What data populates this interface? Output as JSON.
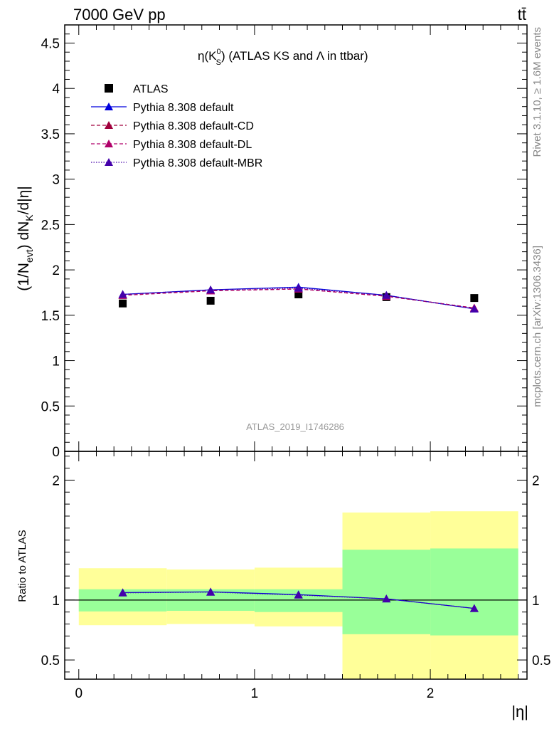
{
  "header": {
    "energy_label": "7000 GeV pp",
    "process_label": "tt̄"
  },
  "side_labels": {
    "rivet": "Rivet 3.1.10, ≥ 1.6M events",
    "mcplots": "mcplots.cern.ch [arXiv:1306.3436]"
  },
  "chart_data": [
    {
      "type": "line",
      "title": "η(K⁰S) (ATLAS KS and Λ in ttbar)",
      "ylabel": "(1/N_evt) dN_K/d|η|",
      "xlabel": "",
      "analysis_label": "ATLAS_2019_I1746286",
      "xlim": [
        -0.08,
        2.55
      ],
      "ylim": [
        0,
        4.7
      ],
      "yticks": [
        0,
        0.5,
        1,
        1.5,
        2,
        2.5,
        3,
        3.5,
        4,
        4.5
      ],
      "ytick_labels": [
        "0",
        "0.5",
        "1",
        "1.5",
        "2",
        "2.5",
        "3",
        "3.5",
        "4",
        "4.5"
      ],
      "legend_position": "top-left",
      "grid": false,
      "x": [
        0.25,
        0.75,
        1.25,
        1.75,
        2.25
      ],
      "series": [
        {
          "name": "ATLAS",
          "marker": "square",
          "color": "#000000",
          "line": "none",
          "values": [
            1.63,
            1.66,
            1.73,
            1.7,
            1.69
          ]
        },
        {
          "name": "Pythia 8.308 default",
          "marker": "triangle",
          "color": "#0000dd",
          "line": "solid",
          "values": [
            1.73,
            1.78,
            1.81,
            1.72,
            1.57
          ]
        },
        {
          "name": "Pythia 8.308 default-CD",
          "marker": "triangle",
          "color": "#a0003c",
          "line": "dashed",
          "values": [
            1.72,
            1.77,
            1.79,
            1.71,
            1.58
          ]
        },
        {
          "name": "Pythia 8.308 default-DL",
          "marker": "triangle",
          "color": "#b0006a",
          "line": "dashed",
          "values": [
            1.72,
            1.77,
            1.79,
            1.71,
            1.58
          ]
        },
        {
          "name": "Pythia 8.308 default-MBR",
          "marker": "triangle",
          "color": "#4400aa",
          "line": "dotted",
          "values": [
            1.73,
            1.78,
            1.8,
            1.72,
            1.57
          ]
        }
      ]
    },
    {
      "type": "line",
      "title": "",
      "ylabel": "Ratio to ATLAS",
      "xlabel": "|η|",
      "xlim": [
        -0.08,
        2.55
      ],
      "ylim": [
        0.34,
        2.24
      ],
      "yticks_labeled": [
        0.5,
        1,
        2
      ],
      "ytick_labels": [
        "0.5",
        "1",
        "2"
      ],
      "xticks": [
        0,
        1,
        2
      ],
      "xtick_labels": [
        "0",
        "1",
        "2"
      ],
      "grid": false,
      "bins": [
        [
          0,
          0.5
        ],
        [
          0.5,
          1.0
        ],
        [
          1.0,
          1.5
        ],
        [
          1.5,
          2.0
        ],
        [
          2.0,
          2.5
        ]
      ],
      "band_stat": {
        "color": "#99ff99",
        "low": [
          0.905,
          0.91,
          0.9,
          0.715,
          0.705
        ],
        "high": [
          1.09,
          1.09,
          1.09,
          1.42,
          1.43
        ]
      },
      "band_total": {
        "color": "#ffff99",
        "low": [
          0.79,
          0.8,
          0.78,
          0.34,
          0.34
        ],
        "high": [
          1.265,
          1.255,
          1.27,
          1.73,
          1.74
        ]
      },
      "x": [
        0.25,
        0.75,
        1.25,
        1.75,
        2.25
      ],
      "series": [
        {
          "name": "Pythia 8.308 default",
          "marker": "triangle",
          "color": "#0000dd",
          "line": "solid",
          "values": [
            1.062,
            1.068,
            1.045,
            1.01,
            0.93
          ]
        },
        {
          "name": "Pythia 8.308 default-MBR",
          "marker": "triangle",
          "color": "#4400aa",
          "line": "dotted",
          "values": [
            1.06,
            1.066,
            1.042,
            1.01,
            0.93
          ]
        }
      ]
    }
  ]
}
